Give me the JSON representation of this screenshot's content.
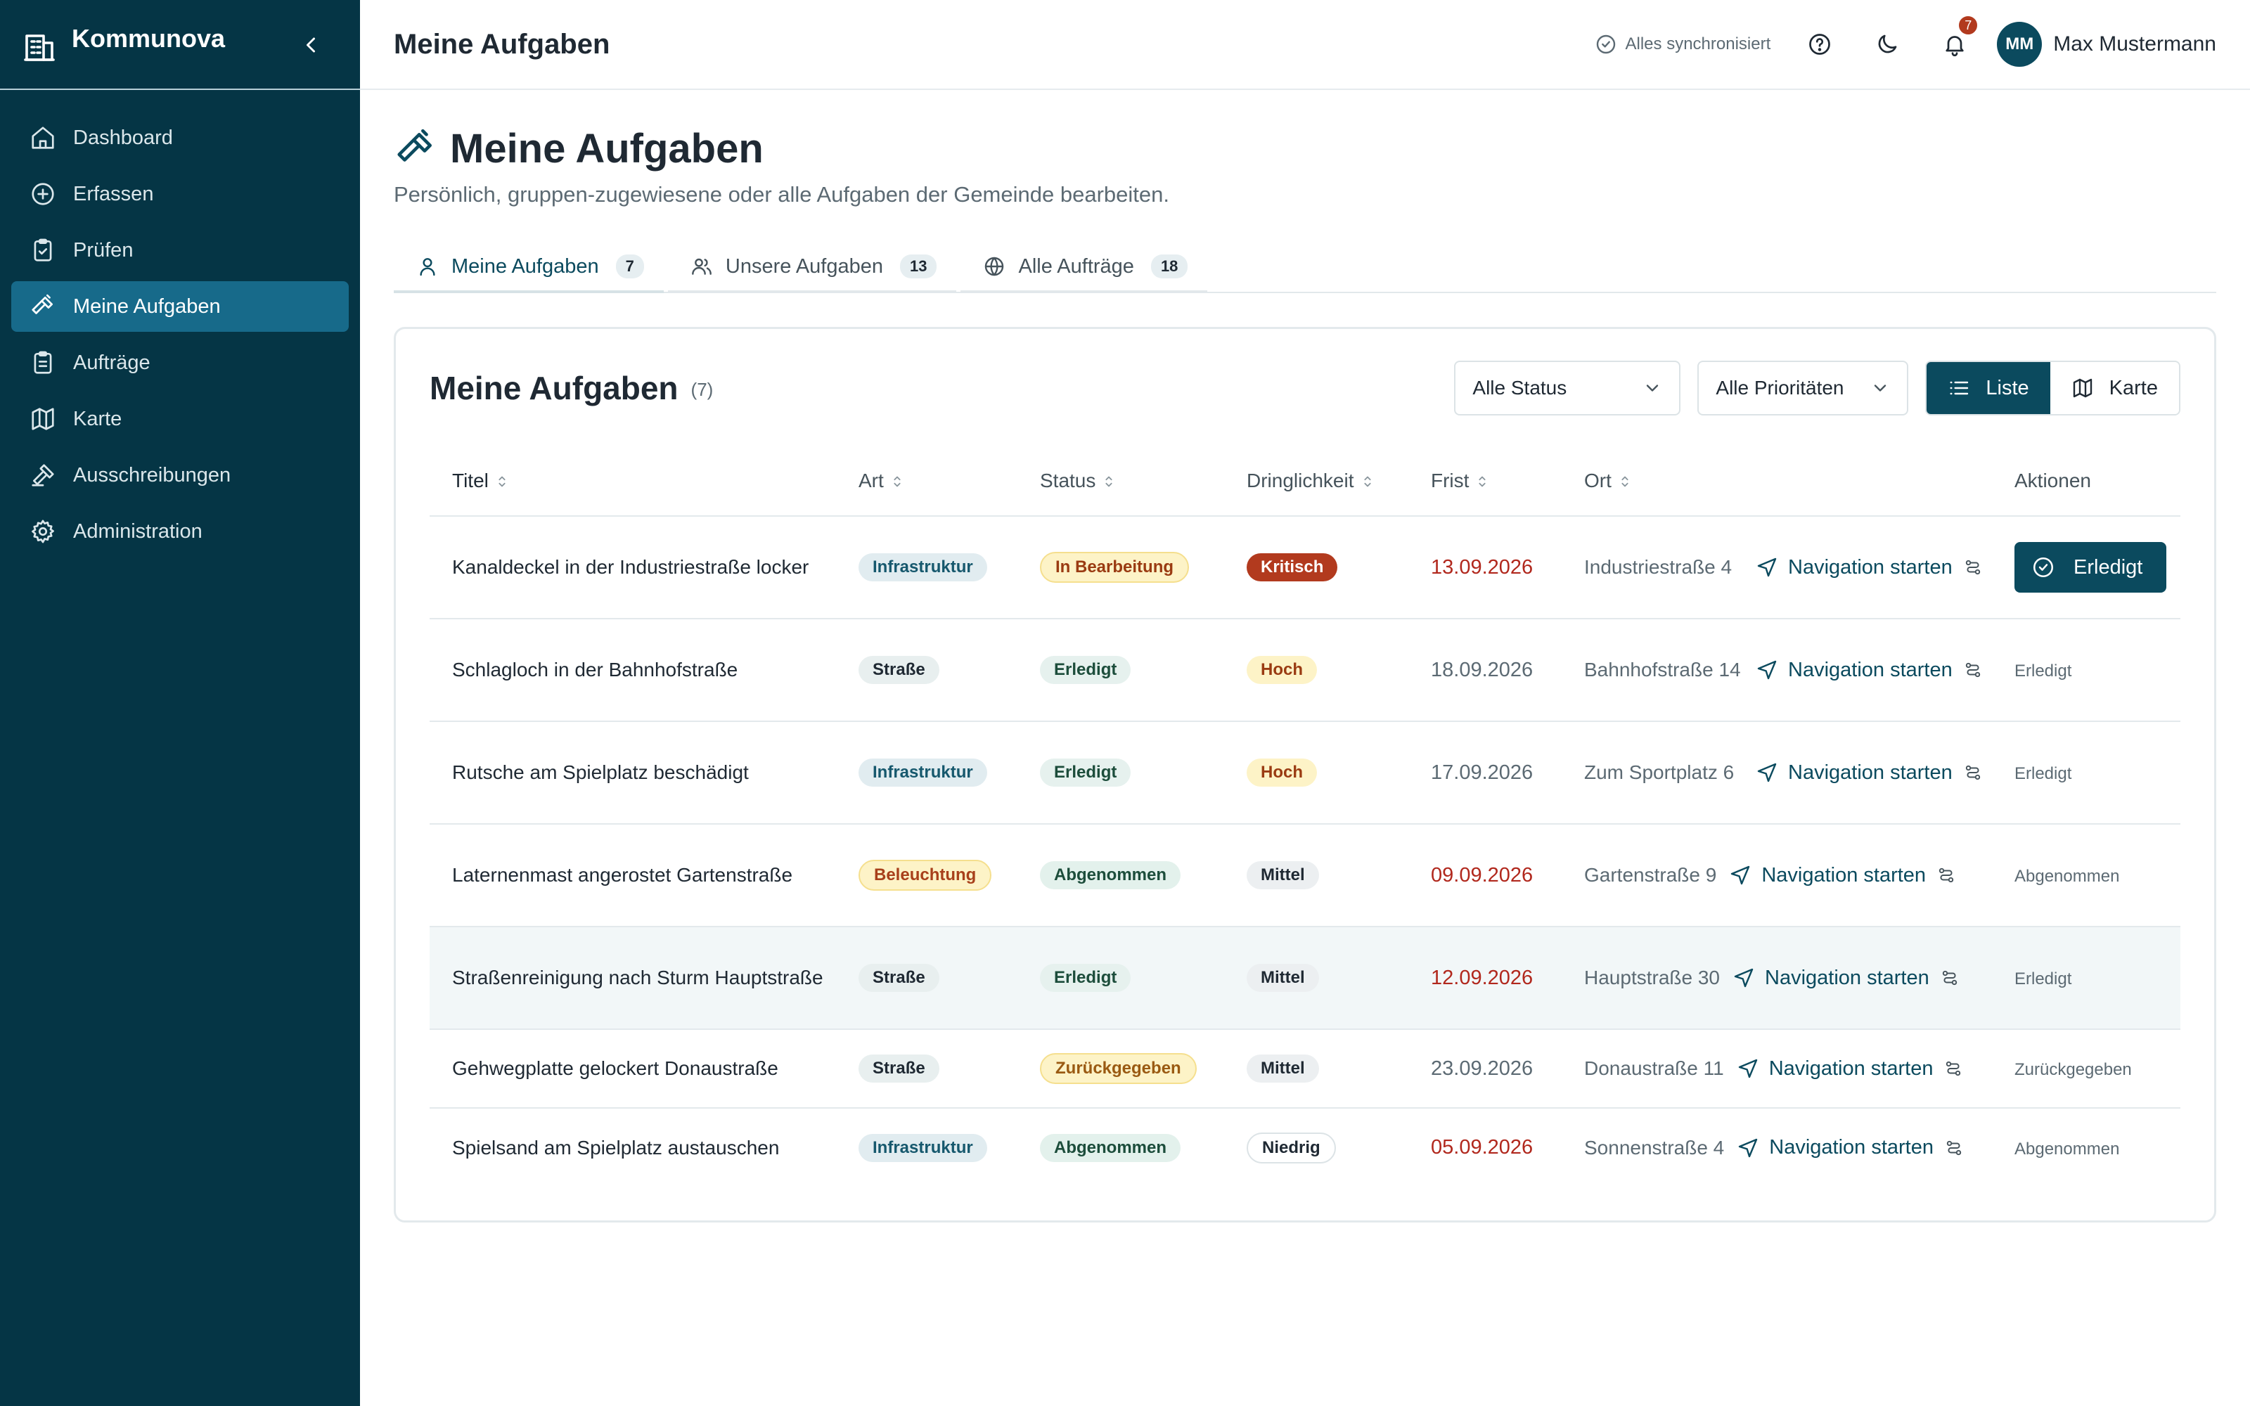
{
  "brand": {
    "name": "Kommunova"
  },
  "sidebar": {
    "items": [
      {
        "label": "Dashboard",
        "icon": "home-icon"
      },
      {
        "label": "Erfassen",
        "icon": "plus-circle-icon"
      },
      {
        "label": "Prüfen",
        "icon": "clipboard-check-icon"
      },
      {
        "label": "Meine Aufgaben",
        "icon": "hammer-icon",
        "active": true
      },
      {
        "label": "Aufträge",
        "icon": "clipboard-list-icon"
      },
      {
        "label": "Karte",
        "icon": "map-icon"
      },
      {
        "label": "Ausschreibungen",
        "icon": "gavel-icon"
      },
      {
        "label": "Administration",
        "icon": "gear-icon"
      }
    ]
  },
  "header": {
    "title": "Meine Aufgaben",
    "sync_status": "Alles synchronisiert",
    "notification_count": "7",
    "user_initials": "MM",
    "user_name": "Max Mustermann"
  },
  "page": {
    "title": "Meine Aufgaben",
    "subtitle": "Persönlich, gruppen-zugewiesene oder alle Aufgaben der Gemeinde bearbeiten."
  },
  "tabs": [
    {
      "label": "Meine Aufgaben",
      "count": "7",
      "icon": "user-icon"
    },
    {
      "label": "Unsere Aufgaben",
      "count": "13",
      "icon": "users-icon"
    },
    {
      "label": "Alle Aufträge",
      "count": "18",
      "icon": "globe-icon"
    }
  ],
  "card": {
    "title": "Meine Aufgaben",
    "count": "(7)",
    "status_filter": "Alle Status",
    "priority_filter": "Alle Prioritäten",
    "view_list": "Liste",
    "view_map": "Karte"
  },
  "table": {
    "columns": [
      "Titel",
      "Art",
      "Status",
      "Dringlichkeit",
      "Frist",
      "Ort",
      "Aktionen"
    ],
    "nav_label": "Navigation starten",
    "rows": [
      {
        "title": "Kanaldeckel in der Industriestraße locker",
        "art": "Infrastruktur",
        "status": "In Bearbeitung",
        "priority": "Kritisch",
        "deadline": "13.09.2026",
        "location": "Industriestraße 4",
        "action": "Erledigt"
      },
      {
        "title": "Schlagloch in der Bahnhofstraße",
        "art": "Straße",
        "status": "Erledigt",
        "priority": "Hoch",
        "deadline": "18.09.2026",
        "location": "Bahnhofstraße 14",
        "action": "Erledigt"
      },
      {
        "title": "Rutsche am Spielplatz beschädigt",
        "art": "Infrastruktur",
        "status": "Erledigt",
        "priority": "Hoch",
        "deadline": "17.09.2026",
        "location": "Zum Sportplatz 6",
        "action": "Erledigt"
      },
      {
        "title": "Laternenmast angerostet Gartenstraße",
        "art": "Beleuchtung",
        "status": "Abgenommen",
        "priority": "Mittel",
        "deadline": "09.09.2026",
        "location": "Gartenstraße 9",
        "action": "Abgenommen"
      },
      {
        "title": "Straßenreinigung nach Sturm Hauptstraße",
        "art": "Straße",
        "status": "Erledigt",
        "priority": "Mittel",
        "deadline": "12.09.2026",
        "location": "Hauptstraße 30",
        "action": "Erledigt"
      },
      {
        "title": "Gehwegplatte gelockert Donaustraße",
        "art": "Straße",
        "status": "Zurückgegeben",
        "priority": "Mittel",
        "deadline": "23.09.2026",
        "location": "Donaustraße 11",
        "action": "Zurückgegeben"
      },
      {
        "title": "Spielsand am Spielplatz austauschen",
        "art": "Infrastruktur",
        "status": "Abgenommen",
        "priority": "Niedrig",
        "deadline": "05.09.2026",
        "location": "Sonnenstraße 4",
        "action": "Abgenommen"
      }
    ]
  },
  "colors": {
    "sidebar_bg": "#053545",
    "sidebar_active": "#176a8a",
    "primary": "#0b4a5e",
    "danger": "#b23a1e",
    "overdue": "#b1281d"
  }
}
